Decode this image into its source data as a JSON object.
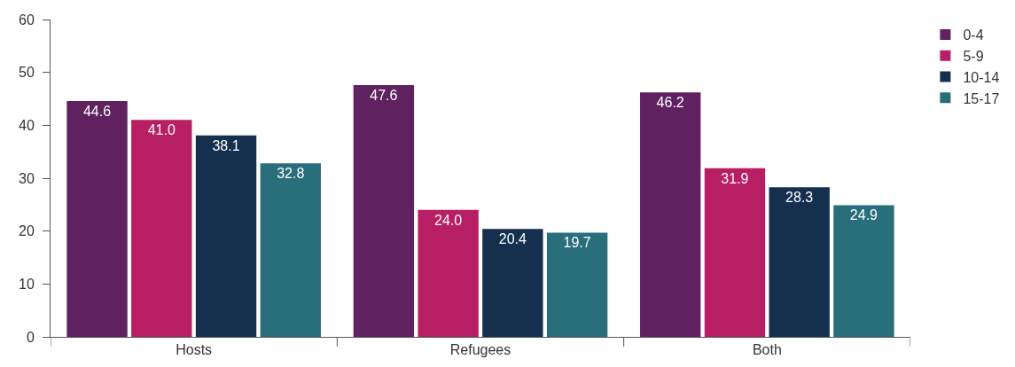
{
  "chart_data": {
    "type": "bar",
    "categories": [
      "Hosts",
      "Refugees",
      "Both"
    ],
    "series": [
      {
        "name": "0-4",
        "color": "#5f2160",
        "values": [
          44.6,
          47.6,
          46.2
        ],
        "value_labels": [
          "44.6",
          "47.6",
          "46.2"
        ]
      },
      {
        "name": "5-9",
        "color": "#b81e64",
        "values": [
          41.0,
          24.0,
          31.9
        ],
        "value_labels": [
          "41.0",
          "24.0",
          "31.9"
        ]
      },
      {
        "name": "10-14",
        "color": "#15304f",
        "values": [
          38.1,
          20.4,
          28.3
        ],
        "value_labels": [
          "38.1",
          "20.4",
          "28.3"
        ]
      },
      {
        "name": "15-17",
        "color": "#286e7b",
        "values": [
          32.8,
          19.7,
          24.9
        ],
        "value_labels": [
          "32.8",
          "19.7",
          "24.9"
        ]
      }
    ],
    "ylim": [
      0,
      60
    ],
    "yticks": [
      0,
      10,
      20,
      30,
      40,
      50,
      60
    ],
    "grid": false,
    "legend": "top right"
  }
}
